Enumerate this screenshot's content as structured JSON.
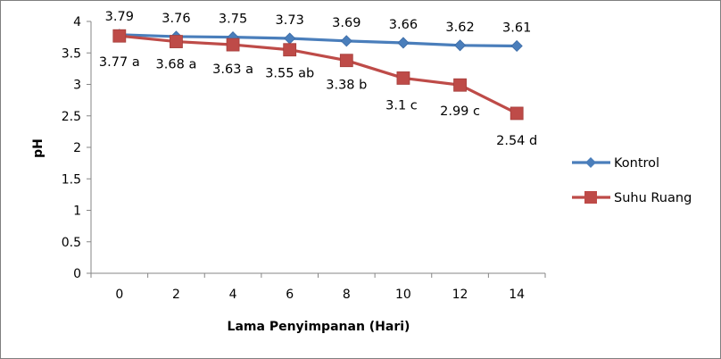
{
  "chart_data": {
    "type": "line",
    "title": "",
    "xlabel": "Lama Penyimpanan (Hari)",
    "ylabel": "pH",
    "x": [
      0,
      2,
      4,
      6,
      8,
      10,
      12,
      14
    ],
    "x_tick_labels": [
      "0",
      "2",
      "4",
      "6",
      "8",
      "10",
      "12",
      "14"
    ],
    "ylim": [
      0,
      4
    ],
    "y_ticks": [
      0,
      0.5,
      1,
      1.5,
      2,
      2.5,
      3,
      3.5,
      4
    ],
    "y_tick_labels": [
      "0",
      "0.5",
      "1",
      "1.5",
      "2",
      "2.5",
      "3",
      "3.5",
      "4"
    ],
    "grid": false,
    "legend_position": "right",
    "series": [
      {
        "name": "Kontrol",
        "color": "#4a7ebb",
        "marker": "diamond",
        "values": [
          3.79,
          3.76,
          3.75,
          3.73,
          3.69,
          3.66,
          3.62,
          3.61
        ],
        "data_labels": [
          "3.79",
          "3.76",
          "3.75",
          "3.73",
          "3.69",
          "3.66",
          "3.62",
          "3.61"
        ]
      },
      {
        "name": "Suhu Ruang",
        "color": "#be4b48",
        "marker": "square",
        "values": [
          3.77,
          3.68,
          3.63,
          3.55,
          3.38,
          3.1,
          2.99,
          2.54
        ],
        "data_labels": [
          "3.77 a",
          "3.68 a",
          "3.63 a",
          "3.55 ab",
          "3.38 b",
          "3.1 c",
          "2.99 c",
          "2.54 d"
        ]
      }
    ]
  }
}
